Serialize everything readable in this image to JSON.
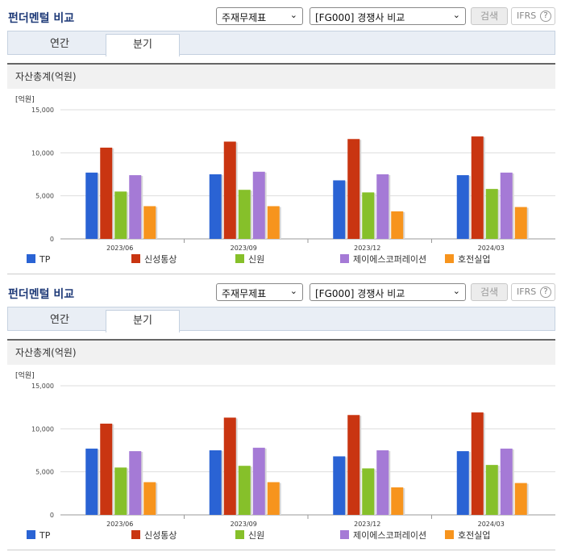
{
  "panels": [
    {
      "title": "펀더멘털 비교",
      "select_stock": "주재무제표",
      "select_compare": "[FG000] 경쟁사 비교",
      "search_label": "검색",
      "ifrs_label": "IFRS",
      "help_glyph": "?",
      "tabs": [
        "연간",
        "분기"
      ],
      "section_title": "자산총계(억원)"
    },
    {
      "title": "펀더멘털 비교",
      "select_stock": "주재무제표",
      "select_compare": "[FG000] 경쟁사 비교",
      "search_label": "검색",
      "ifrs_label": "IFRS",
      "help_glyph": "?",
      "tabs": [
        "연간",
        "분기"
      ],
      "section_title": "자산총계(억원)"
    }
  ],
  "colors": {
    "tp": "#2a63d4",
    "shinsung": "#c93511",
    "shinwon": "#86c02a",
    "jeiees": "#a57ad6",
    "hojeon": "#f7941d"
  },
  "chart_data": [
    {
      "type": "bar",
      "unit_label": "[억원]",
      "categories": [
        "2023/06",
        "2023/09",
        "2023/12",
        "2024/03"
      ],
      "ylim": [
        0,
        15000
      ],
      "yticks": [
        "0",
        "5,000",
        "10,000",
        "15,000"
      ],
      "series": [
        {
          "name": "TP",
          "color_key": "tp",
          "values": [
            7700,
            7500,
            6800,
            7400
          ]
        },
        {
          "name": "신성통상",
          "color_key": "shinsung",
          "values": [
            10600,
            11300,
            11600,
            11900
          ]
        },
        {
          "name": "신원",
          "color_key": "shinwon",
          "values": [
            5500,
            5700,
            5400,
            5800
          ]
        },
        {
          "name": "제이에스코퍼레이션",
          "color_key": "jeiees",
          "values": [
            7400,
            7800,
            7500,
            7700
          ]
        },
        {
          "name": "호전실업",
          "color_key": "hojeon",
          "values": [
            3800,
            3800,
            3200,
            3700
          ]
        }
      ]
    },
    {
      "type": "bar",
      "unit_label": "[억원]",
      "categories": [
        "2023/06",
        "2023/09",
        "2023/12",
        "2024/03"
      ],
      "ylim": [
        0,
        15000
      ],
      "yticks": [
        "0",
        "5,000",
        "10,000",
        "15,000"
      ],
      "series": [
        {
          "name": "TP",
          "color_key": "tp",
          "values": [
            7700,
            7500,
            6800,
            7400
          ]
        },
        {
          "name": "신성통상",
          "color_key": "shinsung",
          "values": [
            10600,
            11300,
            11600,
            11900
          ]
        },
        {
          "name": "신원",
          "color_key": "shinwon",
          "values": [
            5500,
            5700,
            5400,
            5800
          ]
        },
        {
          "name": "제이에스코퍼레이션",
          "color_key": "jeiees",
          "values": [
            7400,
            7800,
            7500,
            7700
          ]
        },
        {
          "name": "호전실업",
          "color_key": "hojeon",
          "values": [
            3800,
            3800,
            3200,
            3700
          ]
        }
      ]
    }
  ]
}
